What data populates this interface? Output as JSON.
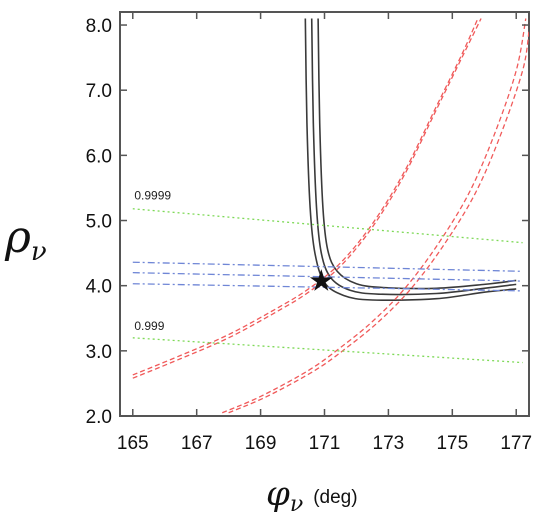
{
  "chart_data": {
    "type": "line",
    "title": "",
    "xlabel": {
      "symbol": "φ",
      "subscript": "ν",
      "unit": "(deg)"
    },
    "ylabel": {
      "symbol": "ρ",
      "subscript": "ν"
    },
    "xlim": [
      164.6,
      177.4
    ],
    "ylim": [
      2.0,
      8.2
    ],
    "xticks": [
      "165",
      "167",
      "169",
      "171",
      "173",
      "175",
      "177"
    ],
    "yticks": [
      "2.0",
      "3.0",
      "4.0",
      "5.0",
      "6.0",
      "7.0",
      "8.0"
    ],
    "grid": false,
    "annotations": [
      {
        "text": "0.9999",
        "x": 165.05,
        "y": 5.32
      },
      {
        "text": "0.999",
        "x": 165.05,
        "y": 3.32
      }
    ],
    "best_fit": {
      "marker": "star",
      "x": 170.9,
      "y": 4.07
    },
    "colors": {
      "black": "#3a3a3a",
      "red": "#f05a5a",
      "blue": "#6f86d6",
      "green": "#7ed957"
    },
    "series": [
      {
        "color": "black",
        "style": "solid",
        "points": [
          [
            170.4,
            8.1
          ],
          [
            170.45,
            6.5
          ],
          [
            170.55,
            5.2
          ],
          [
            170.7,
            4.5
          ],
          [
            171.0,
            4.05
          ],
          [
            171.6,
            3.85
          ],
          [
            172.5,
            3.78
          ],
          [
            174.5,
            3.8
          ],
          [
            176.0,
            3.9
          ],
          [
            177.0,
            3.95
          ]
        ]
      },
      {
        "color": "black",
        "style": "solid",
        "points": [
          [
            170.6,
            8.1
          ],
          [
            170.65,
            6.5
          ],
          [
            170.75,
            5.2
          ],
          [
            170.9,
            4.5
          ],
          [
            171.2,
            4.12
          ],
          [
            171.8,
            3.93
          ],
          [
            172.7,
            3.87
          ],
          [
            174.5,
            3.88
          ],
          [
            176.0,
            3.96
          ],
          [
            177.0,
            4.02
          ]
        ]
      },
      {
        "color": "black",
        "style": "solid",
        "points": [
          [
            170.8,
            8.1
          ],
          [
            170.85,
            6.5
          ],
          [
            170.95,
            5.2
          ],
          [
            171.1,
            4.55
          ],
          [
            171.4,
            4.22
          ],
          [
            172.0,
            4.03
          ],
          [
            172.9,
            3.97
          ],
          [
            174.5,
            3.96
          ],
          [
            176.0,
            4.02
          ],
          [
            177.0,
            4.08
          ]
        ]
      },
      {
        "color": "red",
        "style": "dashed",
        "points": [
          [
            165.0,
            2.58
          ],
          [
            166.5,
            2.88
          ],
          [
            168.0,
            3.2
          ],
          [
            169.5,
            3.6
          ],
          [
            170.5,
            3.9
          ],
          [
            171.5,
            4.3
          ],
          [
            172.5,
            4.9
          ],
          [
            173.5,
            5.7
          ],
          [
            174.5,
            6.7
          ],
          [
            175.3,
            7.5
          ],
          [
            175.9,
            8.1
          ]
        ]
      },
      {
        "color": "red",
        "style": "dashed",
        "points": [
          [
            165.0,
            2.63
          ],
          [
            166.5,
            2.93
          ],
          [
            168.0,
            3.25
          ],
          [
            169.5,
            3.65
          ],
          [
            170.5,
            3.95
          ],
          [
            171.5,
            4.35
          ],
          [
            172.5,
            4.95
          ],
          [
            173.5,
            5.75
          ],
          [
            174.5,
            6.75
          ],
          [
            175.3,
            7.55
          ],
          [
            175.8,
            8.1
          ]
        ]
      },
      {
        "color": "red",
        "style": "dashed",
        "points": [
          [
            167.8,
            2.05
          ],
          [
            169.0,
            2.3
          ],
          [
            170.5,
            2.7
          ],
          [
            171.5,
            3.05
          ],
          [
            172.5,
            3.45
          ],
          [
            173.5,
            3.95
          ],
          [
            174.5,
            4.6
          ],
          [
            175.5,
            5.4
          ],
          [
            176.3,
            6.3
          ],
          [
            177.0,
            7.3
          ],
          [
            177.3,
            8.1
          ]
        ]
      },
      {
        "color": "red",
        "style": "dashed",
        "points": [
          [
            168.0,
            2.05
          ],
          [
            169.2,
            2.3
          ],
          [
            170.7,
            2.7
          ],
          [
            171.7,
            3.05
          ],
          [
            172.7,
            3.45
          ],
          [
            173.7,
            3.95
          ],
          [
            174.7,
            4.6
          ],
          [
            175.7,
            5.4
          ],
          [
            176.5,
            6.3
          ],
          [
            177.2,
            7.3
          ],
          [
            177.4,
            7.9
          ]
        ]
      },
      {
        "color": "blue",
        "style": "dashdot",
        "points": [
          [
            165.0,
            4.36
          ],
          [
            177.2,
            4.22
          ]
        ]
      },
      {
        "color": "blue",
        "style": "dashdot",
        "points": [
          [
            165.0,
            4.2
          ],
          [
            177.2,
            4.07
          ]
        ]
      },
      {
        "color": "blue",
        "style": "dashdot",
        "points": [
          [
            165.0,
            4.03
          ],
          [
            177.2,
            3.92
          ]
        ]
      },
      {
        "color": "green",
        "style": "dotted",
        "points": [
          [
            165.0,
            5.18
          ],
          [
            177.2,
            4.66
          ]
        ]
      },
      {
        "color": "green",
        "style": "dotted",
        "points": [
          [
            165.0,
            3.2
          ],
          [
            177.2,
            2.82
          ]
        ]
      }
    ]
  }
}
